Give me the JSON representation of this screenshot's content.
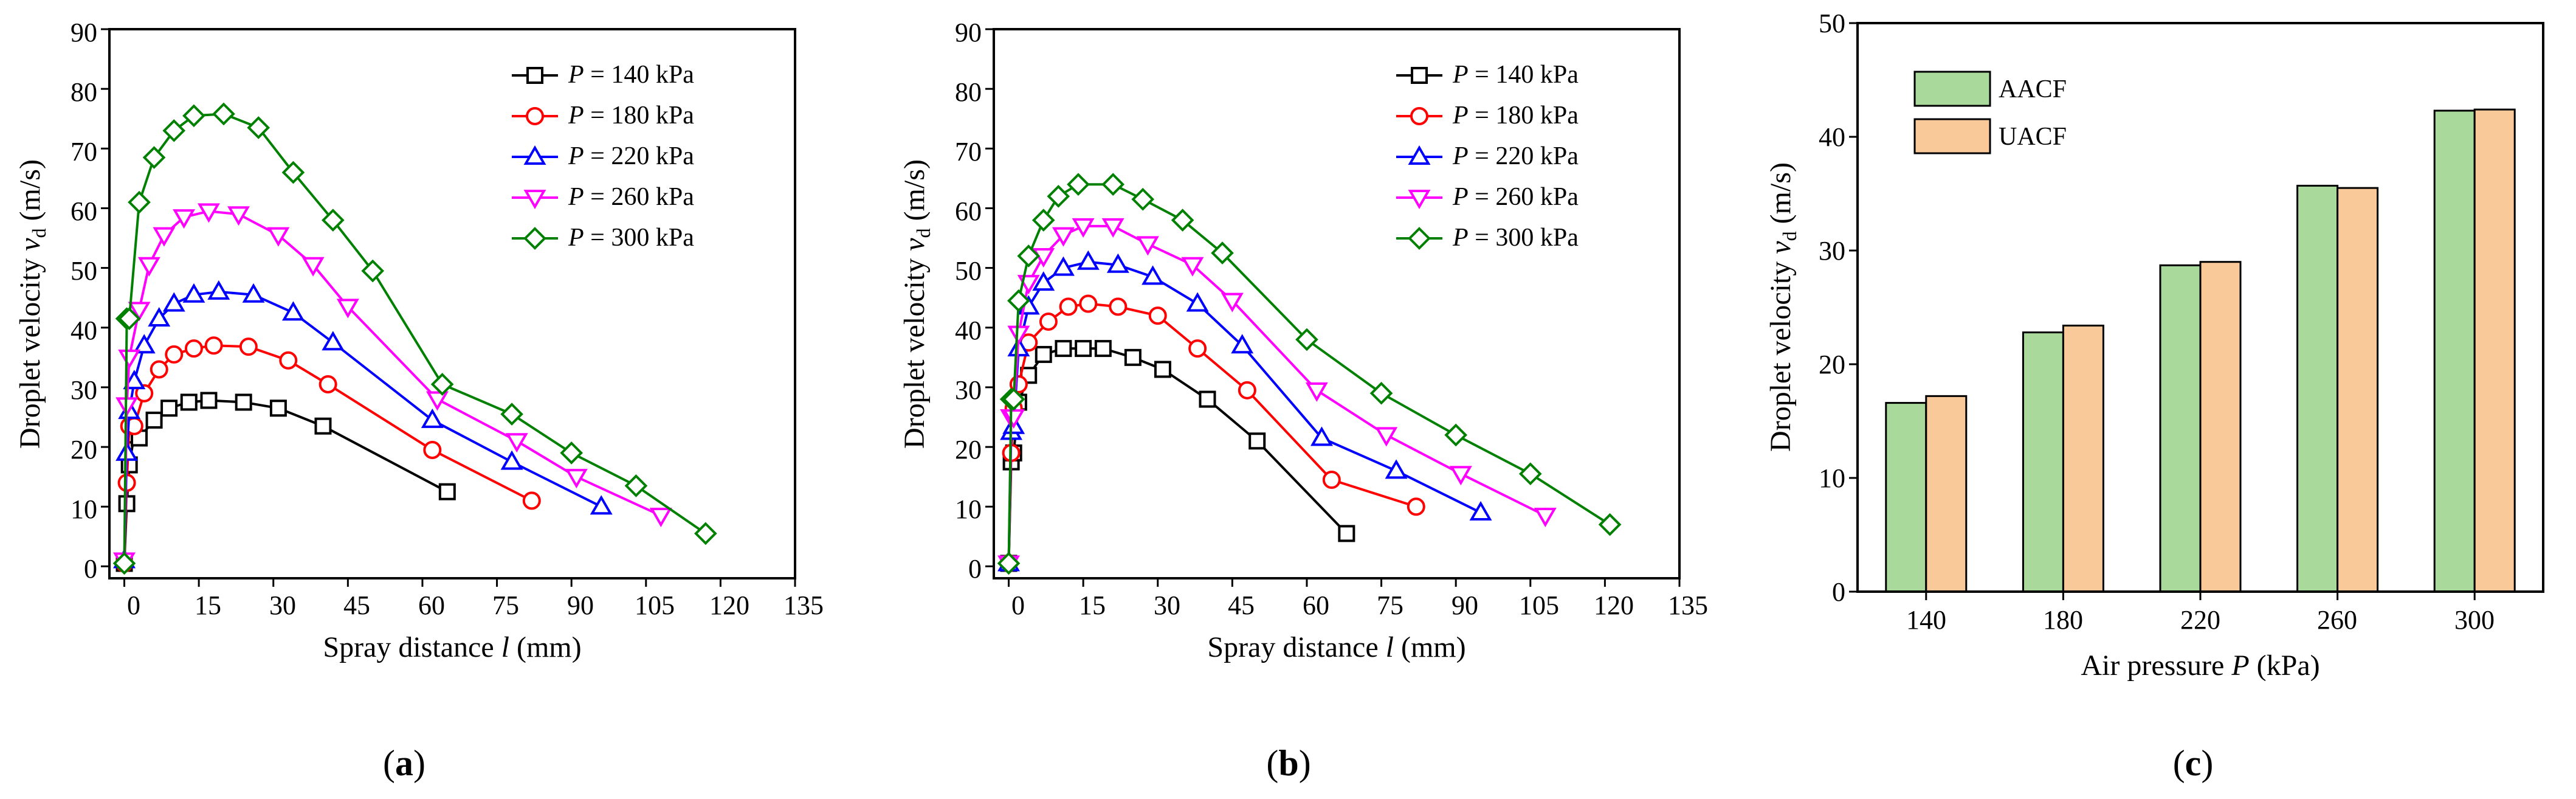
{
  "chart_data": [
    {
      "type": "line",
      "panel": "a",
      "panel_label": "a",
      "xlabel": "Spray distance",
      "xlabel_var": "l",
      "xlabel_unit": "(mm)",
      "ylabel": "Droplet velocity",
      "ylabel_var": "v",
      "ylabel_sub": "d",
      "ylabel_unit": "(m/s)",
      "xlim": [
        -3,
        135
      ],
      "ylim": [
        -2,
        90
      ],
      "xticks": [
        "0",
        "15",
        "30",
        "45",
        "60",
        "75",
        "90",
        "105",
        "120",
        "135"
      ],
      "yticks": [
        "0",
        "10",
        "20",
        "30",
        "40",
        "50",
        "60",
        "70",
        "80",
        "90"
      ],
      "legend_position": "top-right",
      "series": [
        {
          "name": "P = 140 kPa",
          "var": "P",
          "label": " = 140 kPa",
          "color": "#000000",
          "marker": "square",
          "x": [
            0,
            0.5,
            1,
            2,
            3,
            6,
            9,
            13,
            17,
            24,
            31,
            40,
            65
          ],
          "y": [
            0.5,
            10.5,
            17,
            22,
            21.5,
            24.5,
            26.5,
            27.5,
            27.8,
            27.5,
            26.5,
            23.5,
            12.5
          ]
        },
        {
          "name": "P = 180 kPa",
          "var": "P",
          "label": " = 180 kPa",
          "color": "#ff0000",
          "marker": "circle",
          "x": [
            0,
            0.5,
            1,
            2,
            4,
            7,
            10,
            14,
            18,
            25,
            33,
            41,
            62,
            82
          ],
          "y": [
            0.5,
            14,
            23.5,
            23.5,
            29,
            33,
            35.5,
            36.5,
            37,
            36.8,
            34.5,
            30.5,
            19.5,
            11
          ]
        },
        {
          "name": "P = 220 kPa",
          "var": "P",
          "label": " = 220 kPa",
          "color": "#0000ff",
          "marker": "triangle-up",
          "x": [
            0,
            0.5,
            1,
            2,
            4,
            7,
            10,
            14,
            19,
            26,
            34,
            42,
            62,
            78,
            96
          ],
          "y": [
            1,
            19,
            26,
            31,
            37,
            41.5,
            44,
            45.5,
            46,
            45.5,
            42.5,
            37.5,
            24.5,
            17.5,
            10
          ]
        },
        {
          "name": "P = 260 kPa",
          "var": "P",
          "label": " = 260 kPa",
          "color": "#ff00ff",
          "marker": "triangle-down",
          "x": [
            0,
            0.5,
            1,
            3,
            5,
            8,
            12,
            17,
            23,
            31,
            38,
            45,
            63,
            79,
            91,
            108
          ],
          "y": [
            1,
            27,
            35,
            43,
            50.5,
            55.5,
            58.5,
            59.5,
            59,
            55.5,
            50.5,
            43.5,
            28,
            21,
            15,
            8.5
          ]
        },
        {
          "name": "P = 300 kPa",
          "var": "P",
          "label": " = 300 kPa",
          "color": "#008000",
          "marker": "diamond",
          "x": [
            0,
            0.5,
            1,
            3,
            6,
            10,
            14,
            20,
            27,
            34,
            42,
            50,
            64,
            78,
            90,
            103,
            117
          ],
          "y": [
            0.5,
            41.5,
            41.5,
            61,
            68.5,
            73,
            75.5,
            75.8,
            73.5,
            66,
            58,
            49.5,
            30.5,
            25.5,
            19,
            13.5,
            5.5
          ]
        }
      ]
    },
    {
      "type": "line",
      "panel": "b",
      "panel_label": "b",
      "xlabel": "Spray distance",
      "xlabel_var": "l",
      "xlabel_unit": "(mm)",
      "ylabel": "Droplet velocity",
      "ylabel_var": "v",
      "ylabel_sub": "d",
      "ylabel_unit": "(m/s)",
      "xlim": [
        -3,
        135
      ],
      "ylim": [
        -2,
        90
      ],
      "xticks": [
        "0",
        "15",
        "30",
        "45",
        "60",
        "75",
        "90",
        "105",
        "120",
        "135"
      ],
      "yticks": [
        "0",
        "10",
        "20",
        "30",
        "40",
        "50",
        "60",
        "70",
        "80",
        "90"
      ],
      "legend_position": "top-right",
      "series": [
        {
          "name": "P = 140 kPa",
          "var": "P",
          "label": " = 140 kPa",
          "color": "#000000",
          "marker": "square",
          "x": [
            0,
            0.5,
            1,
            2,
            4,
            7,
            11,
            15,
            19,
            25,
            31,
            40,
            50,
            68
          ],
          "y": [
            0.5,
            17.5,
            19,
            27.5,
            32,
            35.5,
            36.5,
            36.5,
            36.5,
            35,
            33,
            28,
            21,
            5.5
          ]
        },
        {
          "name": "P = 180 kPa",
          "var": "P",
          "label": " = 180 kPa",
          "color": "#ff0000",
          "marker": "circle",
          "x": [
            0,
            0.5,
            1,
            2,
            4,
            8,
            12,
            16,
            22,
            30,
            38,
            48,
            65,
            82
          ],
          "y": [
            0.5,
            19,
            26.5,
            30.5,
            37.5,
            41,
            43.5,
            44,
            43.5,
            42,
            36.5,
            29.5,
            14.5,
            10
          ]
        },
        {
          "name": "P = 220 kPa",
          "var": "P",
          "label": " = 220 kPa",
          "color": "#0000ff",
          "marker": "triangle-up",
          "x": [
            0,
            0.5,
            1,
            2,
            4,
            7,
            11,
            16,
            22,
            29,
            38,
            47,
            63,
            78,
            95
          ],
          "y": [
            0.5,
            22.5,
            23.5,
            36.5,
            43.5,
            47.5,
            50,
            51,
            50.5,
            48.5,
            44,
            37,
            21.5,
            16,
            9
          ]
        },
        {
          "name": "P = 260 kPa",
          "var": "P",
          "label": " = 260 kPa",
          "color": "#ff00ff",
          "marker": "triangle-down",
          "x": [
            0,
            0.5,
            1,
            2,
            4,
            7,
            11,
            15,
            21,
            28,
            37,
            45,
            62,
            76,
            91,
            108
          ],
          "y": [
            0.5,
            25,
            25,
            39,
            47.5,
            52,
            55.5,
            57,
            57,
            54,
            50.5,
            44.5,
            29.5,
            22,
            15.5,
            8.5
          ]
        },
        {
          "name": "P = 300 kPa",
          "var": "P",
          "label": " = 300 kPa",
          "color": "#008000",
          "marker": "diamond",
          "x": [
            0,
            0.5,
            1,
            2,
            4,
            7,
            10,
            14,
            21,
            27,
            35,
            43,
            60,
            75,
            90,
            105,
            121
          ],
          "y": [
            0.5,
            28,
            28,
            44.5,
            52,
            58,
            62,
            64,
            64,
            61.5,
            58,
            52.5,
            38,
            29,
            22,
            15.5,
            7
          ]
        }
      ]
    },
    {
      "type": "bar",
      "panel": "c",
      "panel_label": "c",
      "categories": [
        "140",
        "180",
        "220",
        "260",
        "300"
      ],
      "xlabel": "Air pressure",
      "xlabel_var": "P",
      "xlabel_unit": "(kPa)",
      "ylabel": "Droplet velocity",
      "ylabel_var": "v",
      "ylabel_sub": "d",
      "ylabel_unit": "(m/s)",
      "ylim": [
        0,
        50
      ],
      "yticks": [
        "0",
        "10",
        "20",
        "30",
        "40",
        "50"
      ],
      "legend_position": "top-left",
      "series": [
        {
          "name": "AACF",
          "color": "#a9d99b",
          "values": [
            16.6,
            22.8,
            28.7,
            35.7,
            42.3
          ]
        },
        {
          "name": "UACF",
          "color": "#f9c99a",
          "values": [
            17.2,
            23.4,
            29.0,
            35.5,
            42.4
          ]
        }
      ]
    }
  ]
}
